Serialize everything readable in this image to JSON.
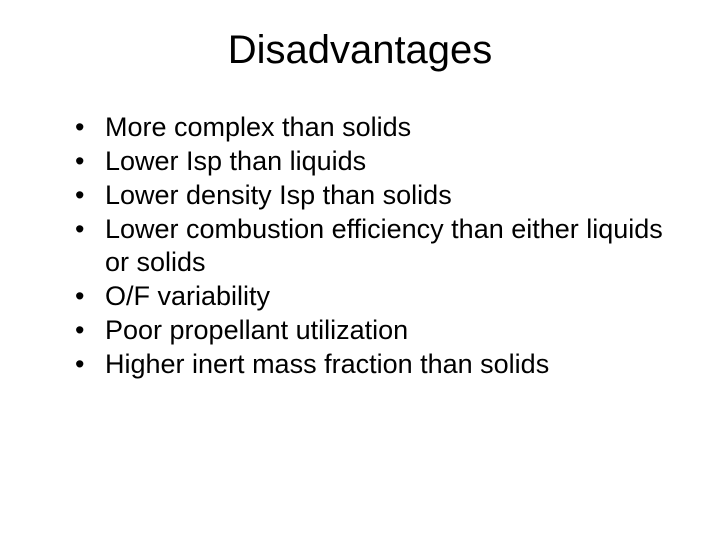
{
  "slide": {
    "title": "Disadvantages",
    "bullets": [
      "More complex than solids",
      "Lower Isp than liquids",
      "Lower density Isp than solids",
      "Lower combustion efficiency than either liquids or solids",
      "O/F variability",
      "Poor propellant utilization",
      "Higher inert mass fraction than solids"
    ]
  }
}
